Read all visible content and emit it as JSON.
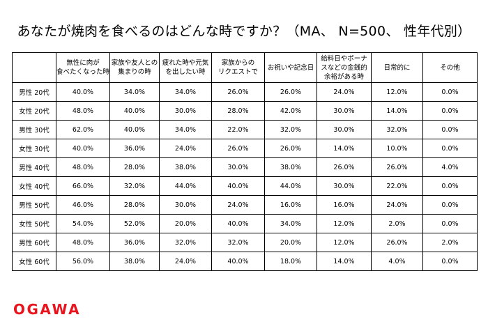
{
  "chart_data": {
    "type": "table",
    "title": "あなたが焼肉を食べるのはどんな時ですか？（MA、 N=500、 性年代別）",
    "columns": [
      "無性に肉が\n食べたくなった時",
      "家族や友人との\n集まりの時",
      "疲れた時や元気\nを出したい時",
      "家族からの\nリクエストで",
      "お祝いや記念日",
      "給料日やボーナ\nスなどの金銭的\n余裕がある時",
      "日常的に",
      "その他"
    ],
    "rows": [
      {
        "label": "男性 20代",
        "values": [
          "40.0%",
          "34.0%",
          "34.0%",
          "26.0%",
          "26.0%",
          "24.0%",
          "12.0%",
          "0.0%"
        ]
      },
      {
        "label": "女性 20代",
        "values": [
          "48.0%",
          "40.0%",
          "30.0%",
          "28.0%",
          "42.0%",
          "30.0%",
          "14.0%",
          "0.0%"
        ]
      },
      {
        "label": "男性 30代",
        "values": [
          "62.0%",
          "40.0%",
          "34.0%",
          "22.0%",
          "32.0%",
          "30.0%",
          "32.0%",
          "0.0%"
        ]
      },
      {
        "label": "女性 30代",
        "values": [
          "40.0%",
          "36.0%",
          "24.0%",
          "26.0%",
          "26.0%",
          "14.0%",
          "10.0%",
          "0.0%"
        ]
      },
      {
        "label": "男性 40代",
        "values": [
          "48.0%",
          "28.0%",
          "38.0%",
          "30.0%",
          "38.0%",
          "26.0%",
          "26.0%",
          "4.0%"
        ]
      },
      {
        "label": "女性 40代",
        "values": [
          "66.0%",
          "32.0%",
          "44.0%",
          "40.0%",
          "44.0%",
          "30.0%",
          "22.0%",
          "0.0%"
        ]
      },
      {
        "label": "男性 50代",
        "values": [
          "46.0%",
          "28.0%",
          "30.0%",
          "24.0%",
          "16.0%",
          "16.0%",
          "24.0%",
          "0.0%"
        ]
      },
      {
        "label": "女性 50代",
        "values": [
          "54.0%",
          "52.0%",
          "20.0%",
          "40.0%",
          "34.0%",
          "12.0%",
          "2.0%",
          "0.0%"
        ]
      },
      {
        "label": "男性 60代",
        "values": [
          "48.0%",
          "36.0%",
          "32.0%",
          "32.0%",
          "20.0%",
          "12.0%",
          "26.0%",
          "2.0%"
        ]
      },
      {
        "label": "女性 60代",
        "values": [
          "56.0%",
          "38.0%",
          "24.0%",
          "40.0%",
          "18.0%",
          "14.0%",
          "4.0%",
          "0.0%"
        ]
      }
    ]
  },
  "brand": {
    "logo_text": "OGAWA",
    "logo_color": "#e8141e"
  }
}
